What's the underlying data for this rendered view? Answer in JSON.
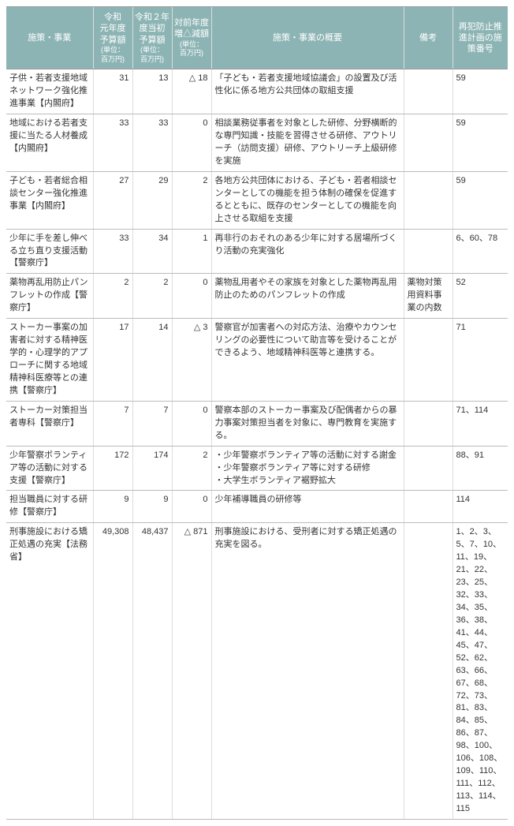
{
  "headers": {
    "c1": "施策・事業",
    "c2": "令和\n元年度\n予算額",
    "c2_unit": "(単位：\n百万円)",
    "c3": "令和２年\n度当初\n予算額",
    "c3_unit": "(単位：\n百万円)",
    "c4": "対前年度\n増△減額",
    "c4_unit": "(単位：\n百万円)",
    "c5": "施策・事業の概要",
    "c6": "備考",
    "c7": "再犯防止推\n進計画の施\n策番号"
  },
  "rows": [
    {
      "name": "子供・若者支援地域ネットワーク強化推進事業【内閣府】",
      "r1": "31",
      "r2": "13",
      "diff": "△ 18",
      "desc": "「子ども・若者支援地域協議会」の設置及び活性化に係る地方公共団体の取組支援",
      "note": "",
      "plan": "59"
    },
    {
      "name": "地域における若者支援に当たる人材養成【内閣府】",
      "r1": "33",
      "r2": "33",
      "diff": "0",
      "desc": "相談業務従事者を対象とした研修、分野横断的な専門知識・技能を習得させる研修、アウトリーチ（訪問支援）研修、アウトリーチ上級研修を実施",
      "note": "",
      "plan": "59"
    },
    {
      "name": "子ども・若者総合相談センター強化推進事業【内閣府】",
      "r1": "27",
      "r2": "29",
      "diff": "2",
      "desc": "各地方公共団体における、子ども・若者相談センターとしての機能を担う体制の確保を促進するとともに、既存のセンターとしての機能を向上させる取組を支援",
      "note": "",
      "plan": "59"
    },
    {
      "name": "少年に手を差し伸べる立ち直り支援活動【警察庁】",
      "r1": "33",
      "r2": "34",
      "diff": "1",
      "desc": "再非行のおそれのある少年に対する居場所づくり活動の充実強化",
      "note": "",
      "plan": "6、60、78"
    },
    {
      "name": "薬物再乱用防止パンフレットの作成【警察庁】",
      "r1": "2",
      "r2": "2",
      "diff": "0",
      "desc": "薬物乱用者やその家族を対象とした薬物再乱用防止のためのパンフレットの作成",
      "note": "薬物対策用資料事業の内数",
      "plan": "52"
    },
    {
      "name": "ストーカー事案の加害者に対する精神医学的・心理学的アプローチに関する地域精神科医療等との連携【警察庁】",
      "r1": "17",
      "r2": "14",
      "diff": "△ 3",
      "desc": "警察官が加害者への対応方法、治療やカウンセリングの必要性について助言等を受けることができるよう、地域精神科医等と連携する。",
      "note": "",
      "plan": "71"
    },
    {
      "name": "ストーカー対策担当者専科【警察庁】",
      "r1": "7",
      "r2": "7",
      "diff": "0",
      "desc": "警察本部のストーカー事案及び配偶者からの暴力事案対策担当者を対象に、専門教育を実施する。",
      "note": "",
      "plan": "71、114"
    },
    {
      "name": "少年警察ボランティア等の活動に対する支援【警察庁】",
      "r1": "172",
      "r2": "174",
      "diff": "2",
      "desc": "・少年警察ボランティア等の活動に対する謝金\n・少年警察ボランティア等に対する研修\n・大学生ボランティア裾野拡大",
      "note": "",
      "plan": "88、91"
    },
    {
      "name": "担当職員に対する研修【警察庁】",
      "r1": "9",
      "r2": "9",
      "diff": "0",
      "desc": "少年補導職員の研修等",
      "note": "",
      "plan": "114"
    },
    {
      "name": "刑事施設における矯正処遇の充実【法務省】",
      "r1": "49,308",
      "r2": "48,437",
      "diff": "△ 871",
      "desc": "刑事施設における、受刑者に対する矯正処遇の充実を図る。",
      "note": "",
      "plan": "1、2、3、5、7、10、11、19、21、22、23、25、32、33、34、35、36、38、41、44、45、47、52、62、63、66、67、68、72、73、81、83、84、85、86、87、98、100、106、108、109、110、111、112、113、114、115"
    }
  ]
}
